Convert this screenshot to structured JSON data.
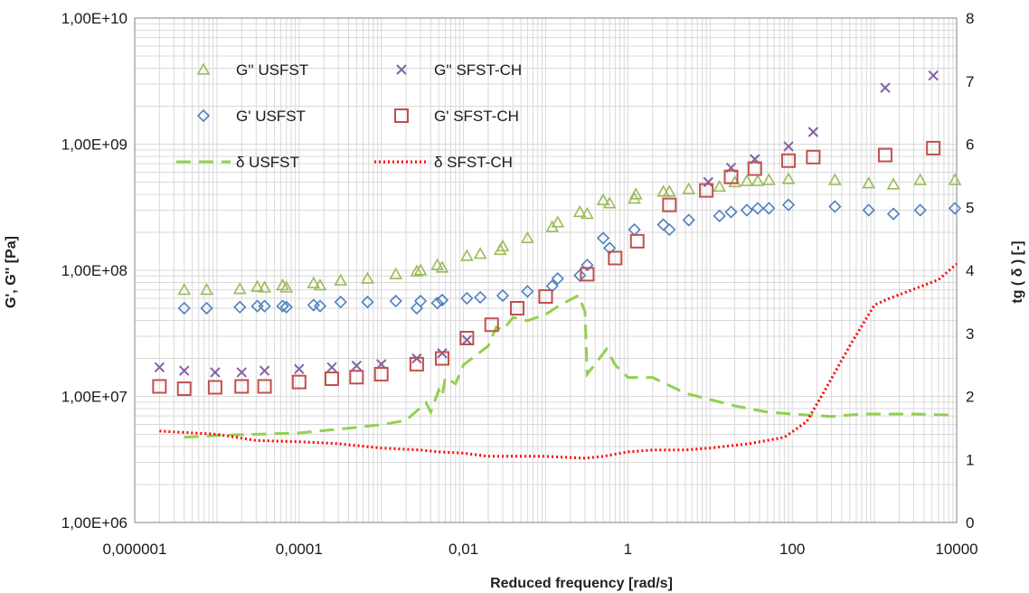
{
  "chart_data": {
    "type": "scatter",
    "xlabel": "Reduced frequency [rad/s]",
    "ylabel_left": "G', G'' [Pa]",
    "ylabel_right": "tg ( δ ) [-]",
    "x_scale": "log",
    "y_left_scale": "log",
    "y_right_scale": "linear",
    "xlim": [
      1e-06,
      10000
    ],
    "ylim_left": [
      1000000,
      10000000000
    ],
    "ylim_right": [
      0,
      8
    ],
    "grid": "major and minor (log x, log left y)",
    "legend_position": "top-left, inside plot",
    "x_ticks": [
      "0,000001",
      "0,0001",
      "0,01",
      "1",
      "100",
      "10000"
    ],
    "y_left_ticks": [
      "1,00E+06",
      "1,00E+07",
      "1,00E+08",
      "1,00E+09",
      "1,00E+10"
    ],
    "y_right_ticks": [
      "0",
      "1",
      "2",
      "3",
      "4",
      "5",
      "6",
      "7",
      "8"
    ],
    "series": [
      {
        "name": "G'' USFST",
        "marker": "triangle",
        "color": "#9bbb59",
        "axis": "left",
        "points": [
          [
            4e-06,
            70000000.0
          ],
          [
            7.5e-06,
            70000000.0
          ],
          [
            1.9e-05,
            71000000.0
          ],
          [
            3.1e-05,
            74000000.0
          ],
          [
            3.8e-05,
            73000000.0
          ],
          [
            6.3e-05,
            76000000.0
          ],
          [
            7e-05,
            73000000.0
          ],
          [
            0.00015,
            79000000.0
          ],
          [
            0.00018,
            76000000.0
          ],
          [
            0.00032,
            83000000.0
          ],
          [
            0.00068,
            86000000.0
          ],
          [
            0.0015,
            93000000.0
          ],
          [
            0.0027,
            98000000.0
          ],
          [
            0.003,
            100000000.0
          ],
          [
            0.0048,
            110000000.0
          ],
          [
            0.0055,
            105000000.0
          ],
          [
            0.011,
            130000000.0
          ],
          [
            0.016,
            135000000.0
          ],
          [
            0.028,
            145000000.0
          ],
          [
            0.03,
            155000000.0
          ],
          [
            0.06,
            180000000.0
          ],
          [
            0.12,
            220000000.0
          ],
          [
            0.14,
            240000000.0
          ],
          [
            0.26,
            290000000.0
          ],
          [
            0.32,
            280000000.0
          ],
          [
            0.5,
            360000000.0
          ],
          [
            0.6,
            340000000.0
          ],
          [
            1.2,
            370000000.0
          ],
          [
            1.25,
            400000000.0
          ],
          [
            2.7,
            420000000.0
          ],
          [
            3.2,
            420000000.0
          ],
          [
            5.5,
            440000000.0
          ],
          [
            13,
            460000000.0
          ],
          [
            20,
            500000000.0
          ],
          [
            28,
            510000000.0
          ],
          [
            38,
            510000000.0
          ],
          [
            52,
            520000000.0
          ],
          [
            90,
            530000000.0
          ],
          [
            330,
            520000000.0
          ],
          [
            850,
            490000000.0
          ],
          [
            1700,
            480000000.0
          ],
          [
            3600,
            520000000.0
          ],
          [
            9500,
            520000000.0
          ]
        ]
      },
      {
        "name": "G' USFST",
        "marker": "diamond",
        "color": "#4f81bd",
        "axis": "left",
        "points": [
          [
            4e-06,
            50000000.0
          ],
          [
            7.5e-06,
            50000000.0
          ],
          [
            1.9e-05,
            51000000.0
          ],
          [
            3.1e-05,
            52000000.0
          ],
          [
            3.8e-05,
            52000000.0
          ],
          [
            6.3e-05,
            52000000.0
          ],
          [
            7e-05,
            51000000.0
          ],
          [
            0.00015,
            53000000.0
          ],
          [
            0.00018,
            52000000.0
          ],
          [
            0.00032,
            56000000.0
          ],
          [
            0.00068,
            56000000.0
          ],
          [
            0.0015,
            57000000.0
          ],
          [
            0.0027,
            50000000.0
          ],
          [
            0.003,
            57000000.0
          ],
          [
            0.0048,
            55000000.0
          ],
          [
            0.0055,
            58000000.0
          ],
          [
            0.011,
            60000000.0
          ],
          [
            0.016,
            61000000.0
          ],
          [
            0.03,
            63000000.0
          ],
          [
            0.06,
            68000000.0
          ],
          [
            0.12,
            75000000.0
          ],
          [
            0.14,
            86000000.0
          ],
          [
            0.26,
            91000000.0
          ],
          [
            0.32,
            110000000.0
          ],
          [
            0.5,
            180000000.0
          ],
          [
            0.6,
            150000000.0
          ],
          [
            1.2,
            210000000.0
          ],
          [
            2.7,
            230000000.0
          ],
          [
            3.2,
            210000000.0
          ],
          [
            5.5,
            250000000.0
          ],
          [
            13,
            270000000.0
          ],
          [
            18,
            290000000.0
          ],
          [
            28,
            300000000.0
          ],
          [
            38,
            310000000.0
          ],
          [
            52,
            310000000.0
          ],
          [
            90,
            330000000.0
          ],
          [
            330,
            320000000.0
          ],
          [
            850,
            300000000.0
          ],
          [
            1700,
            280000000.0
          ],
          [
            3600,
            300000000.0
          ],
          [
            9500,
            310000000.0
          ]
        ]
      },
      {
        "name": "G'' SFST-CH",
        "marker": "x",
        "color": "#8064a2",
        "axis": "left",
        "points": [
          [
            2e-06,
            17000000.0
          ],
          [
            4e-06,
            16000000.0
          ],
          [
            9.5e-06,
            15500000.0
          ],
          [
            2e-05,
            15500000.0
          ],
          [
            3.8e-05,
            16000000.0
          ],
          [
            0.0001,
            16500000.0
          ],
          [
            0.00025,
            17000000.0
          ],
          [
            0.0005,
            17500000.0
          ],
          [
            0.001,
            18000000.0
          ],
          [
            0.0027,
            20000000.0
          ],
          [
            0.0055,
            22000000.0
          ],
          [
            0.011,
            28000000.0
          ],
          [
            9.5,
            500000000.0
          ],
          [
            18,
            650000000.0
          ],
          [
            35,
            760000000.0
          ],
          [
            90,
            960000000.0
          ],
          [
            180,
            1250000000.0
          ],
          [
            1350,
            2800000000.0
          ],
          [
            5200,
            3500000000.0
          ]
        ]
      },
      {
        "name": "G' SFST-CH",
        "marker": "square",
        "color": "#c0504d",
        "axis": "left",
        "points": [
          [
            2e-06,
            12000000.0
          ],
          [
            4e-06,
            11500000.0
          ],
          [
            9.5e-06,
            11800000.0
          ],
          [
            2e-05,
            12000000.0
          ],
          [
            3.8e-05,
            12000000.0
          ],
          [
            0.0001,
            13000000.0
          ],
          [
            0.00025,
            13800000.0
          ],
          [
            0.0005,
            14200000.0
          ],
          [
            0.001,
            15000000.0
          ],
          [
            0.0027,
            18000000.0
          ],
          [
            0.0055,
            20000000.0
          ],
          [
            0.011,
            29000000.0
          ],
          [
            0.022,
            37000000.0
          ],
          [
            0.045,
            50000000.0
          ],
          [
            0.1,
            62000000.0
          ],
          [
            0.32,
            93000000.0
          ],
          [
            0.7,
            125000000.0
          ],
          [
            1.3,
            170000000.0
          ],
          [
            3.2,
            330000000.0
          ],
          [
            9,
            430000000.0
          ],
          [
            18,
            550000000.0
          ],
          [
            35,
            640000000.0
          ],
          [
            90,
            740000000.0
          ],
          [
            180,
            790000000.0
          ],
          [
            1350,
            820000000.0
          ],
          [
            5200,
            930000000.0
          ]
        ]
      },
      {
        "name": "δ USFST",
        "line": "dashed",
        "color": "#92d050",
        "axis": "right",
        "points": [
          [
            4e-06,
            1.35
          ],
          [
            1e-05,
            1.38
          ],
          [
            3e-05,
            1.4
          ],
          [
            0.0001,
            1.42
          ],
          [
            0.0003,
            1.48
          ],
          [
            0.001,
            1.55
          ],
          [
            0.002,
            1.62
          ],
          [
            0.0035,
            1.9
          ],
          [
            0.004,
            1.75
          ],
          [
            0.005,
            2.1
          ],
          [
            0.0055,
            2.0
          ],
          [
            0.006,
            2.3
          ],
          [
            0.008,
            2.2
          ],
          [
            0.01,
            2.5
          ],
          [
            0.02,
            2.8
          ],
          [
            0.025,
            3.1
          ],
          [
            0.03,
            3.05
          ],
          [
            0.04,
            3.25
          ],
          [
            0.06,
            3.2
          ],
          [
            0.1,
            3.3
          ],
          [
            0.15,
            3.45
          ],
          [
            0.25,
            3.6
          ],
          [
            0.3,
            3.35
          ],
          [
            0.32,
            2.35
          ],
          [
            0.45,
            2.6
          ],
          [
            0.55,
            2.75
          ],
          [
            0.7,
            2.5
          ],
          [
            1,
            2.3
          ],
          [
            2,
            2.3
          ],
          [
            5,
            2.05
          ],
          [
            20,
            1.85
          ],
          [
            50,
            1.75
          ],
          [
            100,
            1.72
          ],
          [
            300,
            1.68
          ],
          [
            700,
            1.72
          ],
          [
            1500,
            1.72
          ],
          [
            3000,
            1.72
          ],
          [
            10000,
            1.7
          ]
        ]
      },
      {
        "name": "δ SFST-CH",
        "line": "dotted",
        "color": "#ff0000",
        "axis": "right",
        "points": [
          [
            2e-06,
            1.45
          ],
          [
            1e-05,
            1.4
          ],
          [
            3e-05,
            1.3
          ],
          [
            0.0001,
            1.28
          ],
          [
            0.0003,
            1.25
          ],
          [
            0.001,
            1.18
          ],
          [
            0.003,
            1.15
          ],
          [
            0.005,
            1.12
          ],
          [
            0.01,
            1.1
          ],
          [
            0.02,
            1.05
          ],
          [
            0.05,
            1.05
          ],
          [
            0.1,
            1.05
          ],
          [
            0.3,
            1.02
          ],
          [
            0.5,
            1.05
          ],
          [
            1,
            1.12
          ],
          [
            2,
            1.15
          ],
          [
            5,
            1.15
          ],
          [
            10,
            1.18
          ],
          [
            30,
            1.25
          ],
          [
            80,
            1.35
          ],
          [
            150,
            1.6
          ],
          [
            250,
            2.1
          ],
          [
            500,
            2.8
          ],
          [
            1000,
            3.45
          ],
          [
            1500,
            3.55
          ],
          [
            3000,
            3.7
          ],
          [
            6000,
            3.85
          ],
          [
            10000,
            4.1
          ]
        ]
      }
    ]
  }
}
